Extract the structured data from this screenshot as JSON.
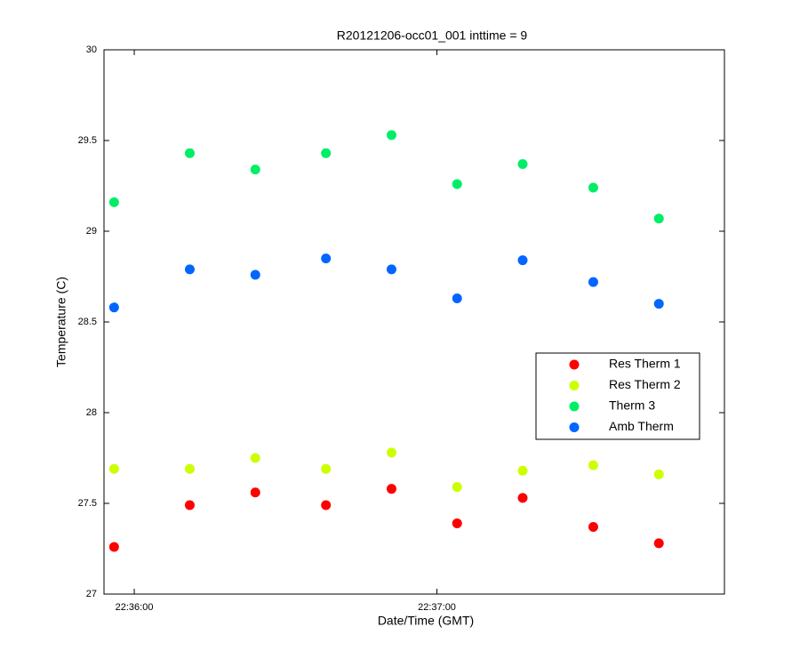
{
  "chart_data": {
    "type": "scatter",
    "title": "R20121206-occ01_001 inttime = 9",
    "xlabel": "Date/Time (GMT)",
    "ylabel": "Temperature (C)",
    "x": [
      "22:35:56",
      "22:36:11",
      "22:36:24",
      "22:36:38",
      "22:36:51",
      "22:37:04",
      "22:37:17",
      "22:37:31",
      "22:37:44"
    ],
    "xlim": [
      "22:35:54",
      "22:37:57"
    ],
    "xticks": [
      "22:36:00",
      "22:37:00"
    ],
    "ylim": [
      27,
      30
    ],
    "yticks": [
      27,
      27.5,
      28,
      28.5,
      29,
      29.5,
      30
    ],
    "grid": false,
    "legend": "right",
    "series": [
      {
        "name": "Res Therm 1",
        "color": "#ff0000",
        "values": [
          27.26,
          27.49,
          27.56,
          27.49,
          27.58,
          27.39,
          27.53,
          27.37,
          27.28
        ]
      },
      {
        "name": "Res Therm 2",
        "color": "#ccff00",
        "values": [
          27.69,
          27.69,
          27.75,
          27.69,
          27.78,
          27.59,
          27.68,
          27.71,
          27.66
        ]
      },
      {
        "name": "Therm 3",
        "color": "#00ee66",
        "values": [
          29.16,
          29.43,
          29.34,
          29.43,
          29.53,
          29.26,
          29.37,
          29.24,
          29.07
        ]
      },
      {
        "name": "Amb Therm",
        "color": "#0066ff",
        "values": [
          28.58,
          28.79,
          28.76,
          28.85,
          28.79,
          28.63,
          28.84,
          28.72,
          28.6
        ]
      }
    ]
  }
}
